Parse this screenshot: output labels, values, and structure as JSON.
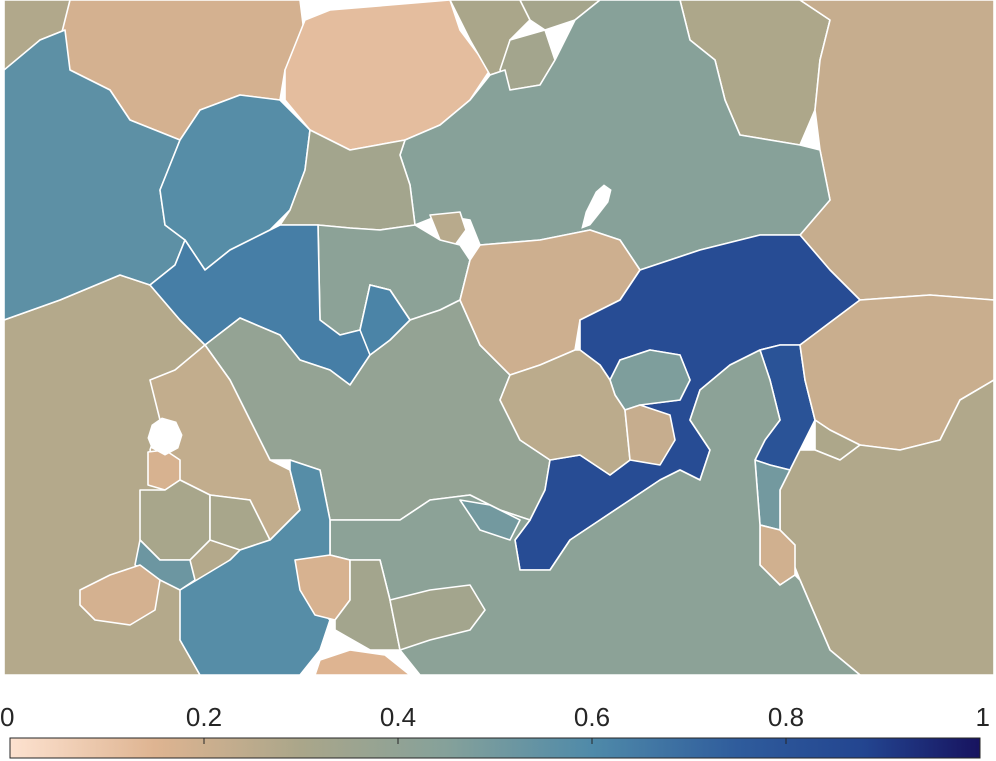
{
  "colorbar": {
    "min": 0,
    "max": 1,
    "ticks": [
      0,
      0.2,
      0.4,
      0.6,
      0.8,
      1
    ],
    "tick_labels": [
      "0",
      "0.2",
      "0.4",
      "0.6",
      "0.8",
      "1"
    ],
    "colormap": [
      {
        "stop": 0.0,
        "color": "#fde2d0"
      },
      {
        "stop": 0.15,
        "color": "#deb491"
      },
      {
        "stop": 0.3,
        "color": "#aaa68a"
      },
      {
        "stop": 0.45,
        "color": "#85a19a"
      },
      {
        "stop": 0.6,
        "color": "#4f8aa9"
      },
      {
        "stop": 0.75,
        "color": "#2f5c9c"
      },
      {
        "stop": 0.88,
        "color": "#234590"
      },
      {
        "stop": 1.0,
        "color": "#17135f"
      }
    ]
  },
  "regions": [
    {
      "id": "nw-small",
      "value": 0.28
    },
    {
      "id": "north-tan-left",
      "value": 0.18
    },
    {
      "id": "north-peach",
      "value": 0.12
    },
    {
      "id": "north-olive-a",
      "value": 0.3
    },
    {
      "id": "north-olive-b",
      "value": 0.32
    },
    {
      "id": "north-olive-c",
      "value": 0.33
    },
    {
      "id": "north-right-olive",
      "value": 0.29
    },
    {
      "id": "far-east-tan",
      "value": 0.22
    },
    {
      "id": "west-blue",
      "value": 0.56
    },
    {
      "id": "west-blue-inner",
      "value": 0.58
    },
    {
      "id": "central-north-teal",
      "value": 0.44
    },
    {
      "id": "central-olive",
      "value": 0.33
    },
    {
      "id": "blue-arm",
      "value": 0.64
    },
    {
      "id": "teal-pocket",
      "value": 0.42
    },
    {
      "id": "small-olive",
      "value": 0.26
    },
    {
      "id": "blue-pocket",
      "value": 0.62
    },
    {
      "id": "west-olive-large",
      "value": 0.27
    },
    {
      "id": "tan-center",
      "value": 0.2
    },
    {
      "id": "dark-blue-big",
      "value": 0.84
    },
    {
      "id": "teal-small-east",
      "value": 0.47
    },
    {
      "id": "east-tan",
      "value": 0.21
    },
    {
      "id": "central-grey-green",
      "value": 0.39
    },
    {
      "id": "tan-mid",
      "value": 0.25
    },
    {
      "id": "tan-small-box",
      "value": 0.22
    },
    {
      "id": "dark-blue-lower",
      "value": 0.8
    },
    {
      "id": "teal-strip-east",
      "value": 0.5
    },
    {
      "id": "se-olive",
      "value": 0.28
    },
    {
      "id": "west-tan-mid",
      "value": 0.23
    },
    {
      "id": "west-small-peach",
      "value": 0.17
    },
    {
      "id": "west-olive-small",
      "value": 0.31
    },
    {
      "id": "west-olive-small-b",
      "value": 0.31
    },
    {
      "id": "blue-south",
      "value": 0.58
    },
    {
      "id": "sw-peach",
      "value": 0.18
    },
    {
      "id": "south-teal",
      "value": 0.42
    },
    {
      "id": "small-peach-south",
      "value": 0.17
    },
    {
      "id": "south-olive-small",
      "value": 0.33
    },
    {
      "id": "south-olive-small-b",
      "value": 0.33
    },
    {
      "id": "south-peach-bottom",
      "value": 0.15
    },
    {
      "id": "teal-small-south",
      "value": 0.5
    },
    {
      "id": "east-small-peach",
      "value": 0.19
    },
    {
      "id": "teal-small-sw",
      "value": 0.52
    },
    {
      "id": "east-olive-small",
      "value": 0.29
    }
  ]
}
